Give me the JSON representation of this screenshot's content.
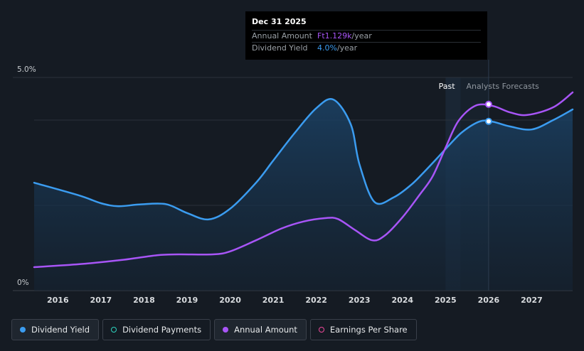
{
  "tooltip": {
    "date": "Dec 31 2025",
    "rows": [
      {
        "label": "Annual Amount",
        "value": "Ft1.129k",
        "suffix": "/year"
      },
      {
        "label": "Dividend Yield",
        "value": "4.0%",
        "suffix": "/year"
      }
    ]
  },
  "regions": {
    "past": "Past",
    "forecast": "Analysts Forecasts"
  },
  "legend": [
    {
      "label": "Dividend Yield",
      "color": "#3b9cf0",
      "filled": true,
      "active": true
    },
    {
      "label": "Dividend Payments",
      "color": "#2dd4bf",
      "filled": false,
      "active": false
    },
    {
      "label": "Annual Amount",
      "color": "#a855f7",
      "filled": true,
      "active": true
    },
    {
      "label": "Earnings Per Share",
      "color": "#ec4899",
      "filled": false,
      "active": false
    }
  ],
  "colors": {
    "background": "#151b23",
    "yield": "#3b9cf0",
    "amount": "#a855f7"
  },
  "chart_data": {
    "type": "line",
    "title": "",
    "xlabel": "",
    "ylabel": "",
    "ylim": [
      0,
      5.0
    ],
    "xlim": [
      2015.45,
      2027.95
    ],
    "y_ticks": [
      {
        "value": 5.0,
        "label": "5.0%"
      },
      {
        "value": 0,
        "label": "0%"
      }
    ],
    "x_ticks": [
      "2016",
      "2017",
      "2018",
      "2019",
      "2020",
      "2021",
      "2022",
      "2023",
      "2024",
      "2025",
      "2026",
      "2027"
    ],
    "grid": true,
    "past_until": 2025.35,
    "series": [
      {
        "name": "Dividend Yield",
        "color": "#3b9cf0",
        "area": true,
        "points": [
          [
            2015.45,
            2.53
          ],
          [
            2016.5,
            2.23
          ],
          [
            2017.0,
            2.05
          ],
          [
            2017.4,
            1.98
          ],
          [
            2017.9,
            2.02
          ],
          [
            2018.5,
            2.03
          ],
          [
            2019.0,
            1.82
          ],
          [
            2019.5,
            1.67
          ],
          [
            2020.0,
            1.92
          ],
          [
            2020.6,
            2.53
          ],
          [
            2021.0,
            3.05
          ],
          [
            2021.5,
            3.7
          ],
          [
            2022.0,
            4.28
          ],
          [
            2022.4,
            4.48
          ],
          [
            2022.8,
            3.9
          ],
          [
            2023.0,
            2.97
          ],
          [
            2023.35,
            2.08
          ],
          [
            2023.8,
            2.19
          ],
          [
            2024.2,
            2.48
          ],
          [
            2024.5,
            2.78
          ],
          [
            2024.8,
            3.1
          ],
          [
            2025.1,
            3.43
          ],
          [
            2025.4,
            3.73
          ],
          [
            2025.8,
            3.97
          ],
          [
            2026.1,
            3.96
          ],
          [
            2026.5,
            3.85
          ],
          [
            2027.0,
            3.78
          ],
          [
            2027.5,
            4.0
          ],
          [
            2027.95,
            4.25
          ]
        ],
        "highlight": [
          2026.0,
          3.97
        ]
      },
      {
        "name": "Annual Amount",
        "color": "#a855f7",
        "area": false,
        "points": [
          [
            2015.45,
            0.55
          ],
          [
            2016.5,
            0.62
          ],
          [
            2017.5,
            0.72
          ],
          [
            2018.3,
            0.83
          ],
          [
            2018.8,
            0.85
          ],
          [
            2019.6,
            0.85
          ],
          [
            2020.0,
            0.92
          ],
          [
            2020.6,
            1.18
          ],
          [
            2021.2,
            1.46
          ],
          [
            2021.7,
            1.62
          ],
          [
            2022.2,
            1.7
          ],
          [
            2022.5,
            1.68
          ],
          [
            2022.9,
            1.42
          ],
          [
            2023.3,
            1.18
          ],
          [
            2023.6,
            1.3
          ],
          [
            2024.0,
            1.72
          ],
          [
            2024.4,
            2.25
          ],
          [
            2024.7,
            2.68
          ],
          [
            2025.0,
            3.35
          ],
          [
            2025.3,
            3.98
          ],
          [
            2025.7,
            4.34
          ],
          [
            2026.1,
            4.33
          ],
          [
            2026.5,
            4.18
          ],
          [
            2026.9,
            4.12
          ],
          [
            2027.5,
            4.3
          ],
          [
            2027.95,
            4.65
          ]
        ],
        "highlight": [
          2026.0,
          4.37
        ]
      }
    ]
  }
}
